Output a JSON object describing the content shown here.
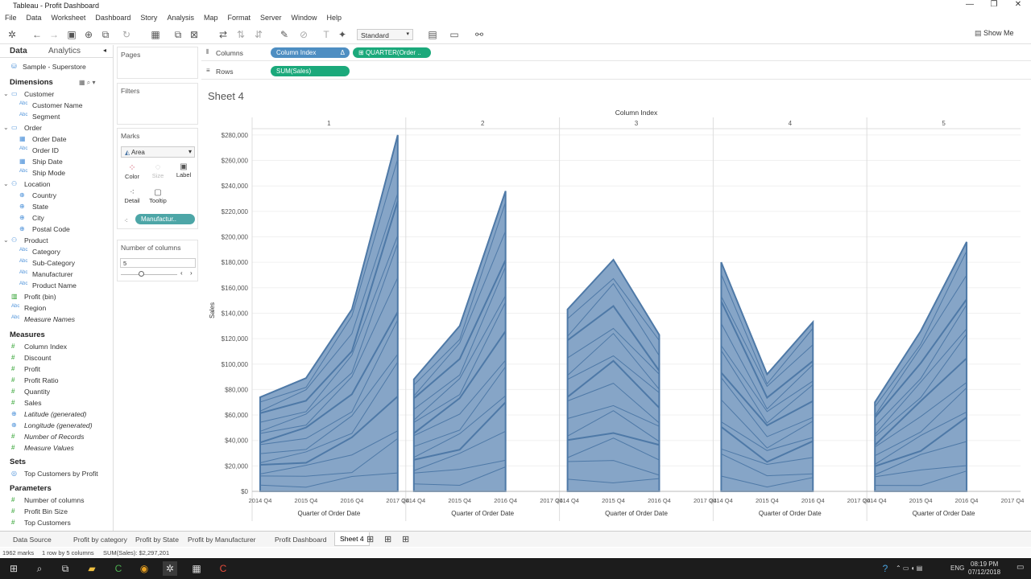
{
  "window": {
    "title": "Tableau - Profit Dashboard",
    "min": "—",
    "max": "❐",
    "close": "✕"
  },
  "menu": [
    "File",
    "Data",
    "Worksheet",
    "Dashboard",
    "Story",
    "Analysis",
    "Map",
    "Format",
    "Server",
    "Window",
    "Help"
  ],
  "toolbar": {
    "fit": "Standard",
    "show_me": "Show Me"
  },
  "data_pane": {
    "tab_data": "Data",
    "tab_analytics": "Analytics",
    "datasource": "Sample - Superstore",
    "dimensions_label": "Dimensions",
    "items": [
      {
        "label": "Customer",
        "icon": "folder",
        "indent": 1,
        "italic": false
      },
      {
        "label": "Customer Name",
        "icon": "Abc",
        "indent": 2,
        "italic": false
      },
      {
        "label": "Segment",
        "icon": "Abc",
        "indent": 2,
        "italic": false
      },
      {
        "label": "Order",
        "icon": "folder",
        "indent": 1,
        "italic": false
      },
      {
        "label": "Order Date",
        "icon": "date",
        "indent": 2,
        "italic": false
      },
      {
        "label": "Order ID",
        "icon": "Abc",
        "indent": 2,
        "italic": false
      },
      {
        "label": "Ship Date",
        "icon": "date",
        "indent": 2,
        "italic": false
      },
      {
        "label": "Ship Mode",
        "icon": "Abc",
        "indent": 2,
        "italic": false
      },
      {
        "label": "Location",
        "icon": "hier",
        "indent": 1,
        "italic": false
      },
      {
        "label": "Country",
        "icon": "globe",
        "indent": 2,
        "italic": false
      },
      {
        "label": "State",
        "icon": "globe",
        "indent": 2,
        "italic": false
      },
      {
        "label": "City",
        "icon": "globe",
        "indent": 2,
        "italic": false
      },
      {
        "label": "Postal Code",
        "icon": "globe",
        "indent": 2,
        "italic": false
      },
      {
        "label": "Product",
        "icon": "hier",
        "indent": 1,
        "italic": false
      },
      {
        "label": "Category",
        "icon": "Abc",
        "indent": 2,
        "italic": false
      },
      {
        "label": "Sub-Category",
        "icon": "Abc",
        "indent": 2,
        "italic": false
      },
      {
        "label": "Manufacturer",
        "icon": "Abc",
        "indent": 2,
        "italic": false
      },
      {
        "label": "Product Name",
        "icon": "Abc",
        "indent": 2,
        "italic": false
      },
      {
        "label": "Profit (bin)",
        "icon": "bin",
        "indent": 1,
        "italic": false
      },
      {
        "label": "Region",
        "icon": "Abc",
        "indent": 1,
        "italic": false
      },
      {
        "label": "Measure Names",
        "icon": "Abc",
        "indent": 1,
        "italic": true
      }
    ],
    "measures_label": "Measures",
    "measures": [
      {
        "label": "Column Index",
        "icon": "#",
        "italic": false
      },
      {
        "label": "Discount",
        "icon": "#",
        "italic": false
      },
      {
        "label": "Profit",
        "icon": "#",
        "italic": false
      },
      {
        "label": "Profit Ratio",
        "icon": "#",
        "italic": false
      },
      {
        "label": "Quantity",
        "icon": "#",
        "italic": false
      },
      {
        "label": "Sales",
        "icon": "#",
        "italic": false
      },
      {
        "label": "Latitude (generated)",
        "icon": "globe",
        "italic": true
      },
      {
        "label": "Longitude (generated)",
        "icon": "globe",
        "italic": true
      },
      {
        "label": "Number of Records",
        "icon": "#",
        "italic": true
      },
      {
        "label": "Measure Values",
        "icon": "#",
        "italic": true
      }
    ],
    "sets_label": "Sets",
    "sets": [
      {
        "label": "Top Customers by Profit",
        "icon": "set"
      }
    ],
    "parameters_label": "Parameters",
    "parameters": [
      {
        "label": "Number of columns"
      },
      {
        "label": "Profit Bin Size"
      },
      {
        "label": "Top Customers"
      }
    ]
  },
  "cards": {
    "pages": "Pages",
    "filters": "Filters",
    "marks": "Marks",
    "mark_type": "Area",
    "color": "Color",
    "size": "Size",
    "label": "Label",
    "detail": "Detail",
    "tooltip": "Tooltip",
    "detail_pill": "Manufactur..",
    "param_title": "Number of columns",
    "param_value": "5"
  },
  "shelves": {
    "columns_label": "Columns",
    "rows_label": "Rows",
    "col_pill1": "Column Index",
    "col_pill2": "QUARTER(Order ..",
    "row_pill": "SUM(Sales)"
  },
  "sheet_title": "Sheet 4",
  "chart_data": {
    "type": "area",
    "column_header": "Column Index",
    "panels": [
      "1",
      "2",
      "3",
      "4",
      "5"
    ],
    "x": [
      "2014 Q4",
      "2015 Q4",
      "2016 Q4",
      "2017 Q4"
    ],
    "xlabel": "Quarter of Order Date",
    "ylabel": "Sales",
    "yticks": [
      "$0",
      "$20,000",
      "$40,000",
      "$60,000",
      "$80,000",
      "$100,000",
      "$120,000",
      "$140,000",
      "$160,000",
      "$180,000",
      "$200,000",
      "$220,000",
      "$240,000",
      "$260,000",
      "$280,000"
    ],
    "ylim": [
      0,
      285000
    ],
    "panel_totals": [
      [
        74000,
        89000,
        143000,
        280000
      ],
      [
        88000,
        130000,
        236000,
        null
      ],
      [
        143000,
        182000,
        123000,
        null
      ],
      [
        180000,
        92000,
        133000,
        null
      ],
      [
        70000,
        126000,
        196000,
        null
      ]
    ],
    "color": "#4e79a7"
  },
  "bottom_tabs": [
    "Data Source",
    "Profit by category",
    "Profit by State",
    "Profit by Manufacturer",
    "Profit Dashboard",
    "Sheet 4"
  ],
  "status": {
    "marks": "1962 marks",
    "rows": "1 row by 5 columns",
    "sum": "SUM(Sales): $2,297,201"
  },
  "taskbar": {
    "lang": "ENG",
    "time": "08:19 PM",
    "date": "07/12/2018"
  }
}
